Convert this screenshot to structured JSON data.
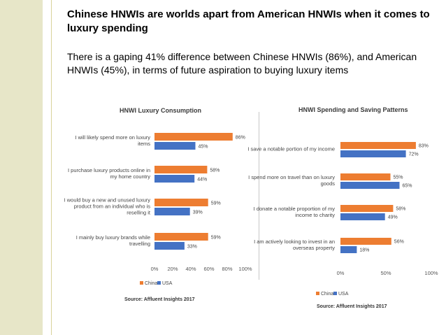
{
  "slide": {
    "title": "Chinese HNWIs are worlds apart from American HNWIs when it comes to luxury spending",
    "body": "There is a gaping 41% difference between Chinese HNWIs (86%), and American HNWIs (45%), in terms of future aspiration to buying luxury items"
  },
  "colors": {
    "china": "#ed7d31",
    "usa": "#4472c4",
    "accent_bar": "#e7e6c8"
  },
  "chart_data": [
    {
      "type": "bar",
      "orientation": "horizontal",
      "title": "HNWI  Luxury Consumption",
      "categories": [
        [
          "I will likely spend more on luxury",
          "items"
        ],
        [
          "I purchase luxury products online in",
          "my home country"
        ],
        [
          "I would buy a new and unused luxury",
          "product from an individual who is",
          "reselling it"
        ],
        [
          "I mainly buy luxury brands while",
          "travelling"
        ]
      ],
      "series": [
        {
          "name": "China",
          "values": [
            86,
            58,
            59,
            59
          ],
          "labels": [
            "86%",
            "58%",
            "59%",
            "59%"
          ]
        },
        {
          "name": "USA",
          "values": [
            45,
            44,
            39,
            33
          ],
          "labels": [
            "45%",
            "44%",
            "39%",
            "33%"
          ]
        }
      ],
      "xlim": [
        0,
        100
      ],
      "ticks": [
        "0%",
        "20%",
        "40%",
        "60%",
        "80%",
        "100%"
      ],
      "legend": "bottom-left",
      "source": "Source: Affluent Insights 2017"
    },
    {
      "type": "bar",
      "orientation": "horizontal",
      "title": "HNWI Spending and Saving Patterns",
      "categories": [
        [
          "I save a notable portion of my income"
        ],
        [
          "I spend more on travel than on luxury",
          "goods"
        ],
        [
          "I donate a notable proportion of my",
          "income to charity"
        ],
        [
          "I am actively looking to invest in an",
          "overseas property"
        ]
      ],
      "series": [
        {
          "name": "China",
          "values": [
            83,
            55,
            58,
            56
          ],
          "labels": [
            "83%",
            "55%",
            "58%",
            "56%"
          ]
        },
        {
          "name": "USA",
          "values": [
            72,
            65,
            49,
            18
          ],
          "labels": [
            "72%",
            "65%",
            "49%",
            "18%"
          ]
        }
      ],
      "xlim": [
        0,
        100
      ],
      "ticks": [
        "0%",
        "50%",
        "100%"
      ],
      "legend": "bottom-left",
      "source": "Source: Affluent Insights 2017"
    }
  ]
}
